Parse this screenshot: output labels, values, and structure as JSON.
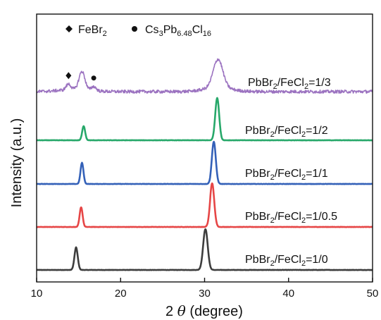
{
  "chart_data": {
    "type": "line",
    "xlabel_prefix": "2",
    "xlabel_theta": "θ",
    "xlabel_suffix": "(degree)",
    "ylabel": "Intensity (a.u.)",
    "xlim": [
      10,
      50
    ],
    "xticks": [
      "10",
      "20",
      "30",
      "40",
      "50"
    ],
    "legend": [
      {
        "marker": "diamond",
        "base": "FeBr",
        "sub1": "2",
        "rest": ""
      },
      {
        "marker": "circle",
        "base": "Cs",
        "sub1": "3",
        "mid": "Pb",
        "sub2": "6.48",
        "mid2": "Cl",
        "sub3": "16"
      }
    ],
    "series": [
      {
        "name": "PbBr2/FeCl2=1/0",
        "label_pre": "PbBr",
        "label_sub1": "2",
        "label_mid": "/FeCl",
        "label_sub2": "2",
        "label_post": "=1/0",
        "color": "#3d3d3d",
        "noise": 0.2,
        "peaks": [
          {
            "x": 14.7,
            "h": 32,
            "w": 0.28
          },
          {
            "x": 30.1,
            "h": 58,
            "w": 0.38
          }
        ]
      },
      {
        "name": "PbBr2/FeCl2=1/0.5",
        "label_pre": "PbBr",
        "label_sub1": "2",
        "label_mid": "/FeCl",
        "label_sub2": "2",
        "label_post": "=1/0.5",
        "color": "#e64646",
        "noise": 0.2,
        "peaks": [
          {
            "x": 15.3,
            "h": 28,
            "w": 0.25
          },
          {
            "x": 30.9,
            "h": 62,
            "w": 0.35
          }
        ]
      },
      {
        "name": "PbBr2/FeCl2=1/1",
        "label_pre": "PbBr",
        "label_sub1": "2",
        "label_mid": "/FeCl",
        "label_sub2": "2",
        "label_post": "=1/1",
        "color": "#3461b8",
        "noise": 0.2,
        "peaks": [
          {
            "x": 15.4,
            "h": 30,
            "w": 0.25
          },
          {
            "x": 31.1,
            "h": 60,
            "w": 0.33
          }
        ]
      },
      {
        "name": "PbBr2/FeCl2=1/2",
        "label_pre": "PbBr",
        "label_sub1": "2",
        "label_mid": "/FeCl",
        "label_sub2": "2",
        "label_post": "=1/2",
        "color": "#27a86a",
        "noise": 0.2,
        "peaks": [
          {
            "x": 15.6,
            "h": 20,
            "w": 0.25
          },
          {
            "x": 31.5,
            "h": 60,
            "w": 0.33
          }
        ]
      },
      {
        "name": "PbBr2/FeCl2=1/3",
        "label_pre": "PbBr",
        "label_sub1": "2",
        "label_mid": "/FeCl",
        "label_sub2": "2",
        "label_post": "=1/3",
        "color": "#9b72c0",
        "noise": 2.2,
        "peaks": [
          {
            "x": 13.8,
            "h": 8,
            "w": 0.4
          },
          {
            "x": 15.4,
            "h": 26,
            "w": 0.5
          },
          {
            "x": 16.8,
            "h": 6,
            "w": 0.4
          },
          {
            "x": 31.6,
            "h": 40,
            "w": 0.8
          }
        ]
      }
    ],
    "markers": [
      {
        "type": "diamond",
        "series": 4,
        "x": 13.8
      },
      {
        "type": "circle",
        "series": 4,
        "x": 16.8
      }
    ]
  }
}
